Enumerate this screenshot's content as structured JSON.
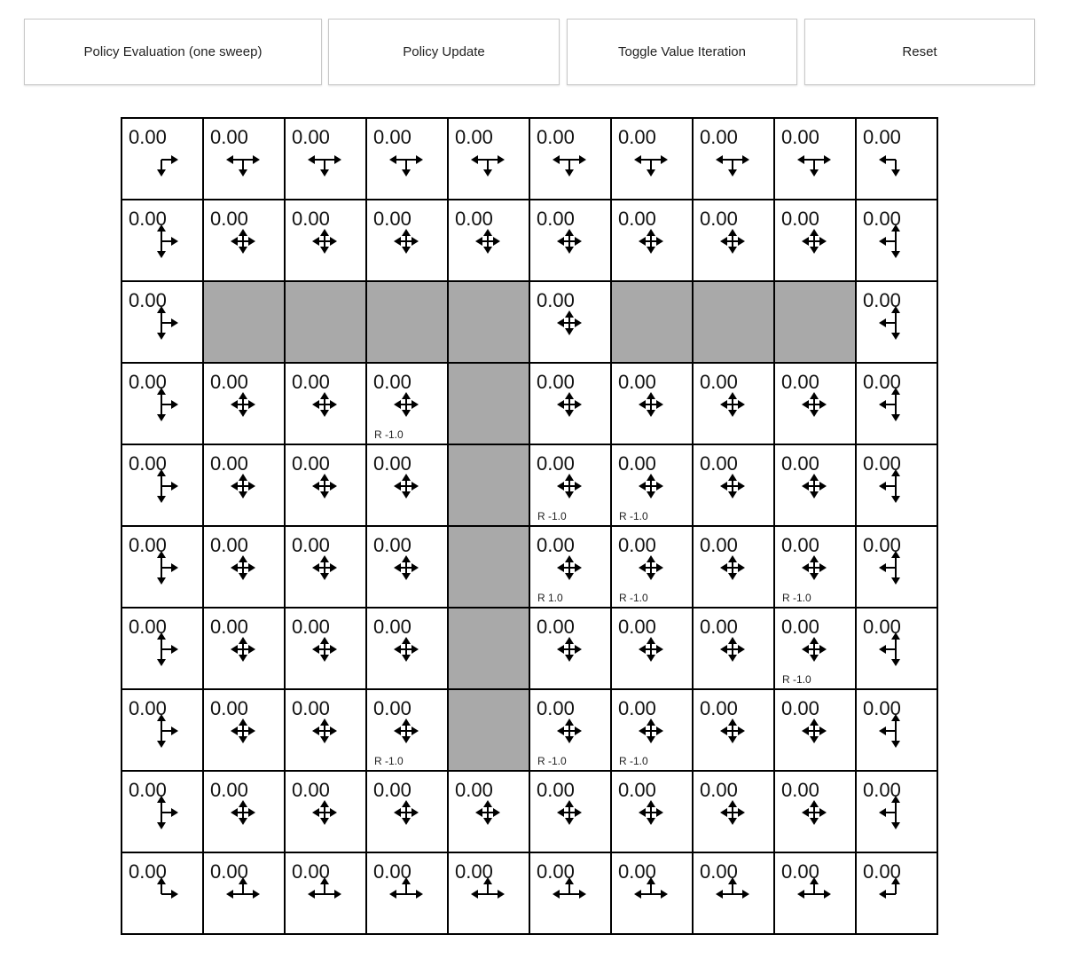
{
  "buttons": [
    {
      "id": "policy-evaluation",
      "label": "Policy Evaluation (one sweep)"
    },
    {
      "id": "policy-update",
      "label": "Policy Update"
    },
    {
      "id": "toggle-value-iteration",
      "label": "Toggle Value Iteration"
    },
    {
      "id": "reset",
      "label": "Reset"
    }
  ],
  "grid": {
    "rows": 10,
    "cols": 10,
    "default_value": "0.00",
    "wall_color": "#a9a9a9",
    "walls": [
      [
        2,
        1
      ],
      [
        2,
        2
      ],
      [
        2,
        3
      ],
      [
        2,
        4
      ],
      [
        2,
        6
      ],
      [
        2,
        7
      ],
      [
        2,
        8
      ],
      [
        3,
        4
      ],
      [
        4,
        4
      ],
      [
        5,
        4
      ],
      [
        6,
        4
      ],
      [
        7,
        4
      ]
    ],
    "rewards": [
      {
        "row": 3,
        "col": 3,
        "label": "R -1.0"
      },
      {
        "row": 4,
        "col": 5,
        "label": "R -1.0"
      },
      {
        "row": 4,
        "col": 6,
        "label": "R -1.0"
      },
      {
        "row": 5,
        "col": 5,
        "label": "R 1.0"
      },
      {
        "row": 5,
        "col": 6,
        "label": "R -1.0"
      },
      {
        "row": 5,
        "col": 8,
        "label": "R -1.0"
      },
      {
        "row": 6,
        "col": 8,
        "label": "R -1.0"
      },
      {
        "row": 7,
        "col": 3,
        "label": "R -1.0"
      },
      {
        "row": 7,
        "col": 5,
        "label": "R -1.0"
      },
      {
        "row": 7,
        "col": 6,
        "label": "R -1.0"
      }
    ],
    "policy": {
      "corner_top_left": "RD",
      "top": "LRD",
      "corner_top_right": "LD",
      "left": "UDR",
      "interior": "UDLR",
      "right": "UDL",
      "corner_bottom_left": "UR",
      "bottom": "LRU",
      "corner_bottom_right": "UL"
    }
  }
}
